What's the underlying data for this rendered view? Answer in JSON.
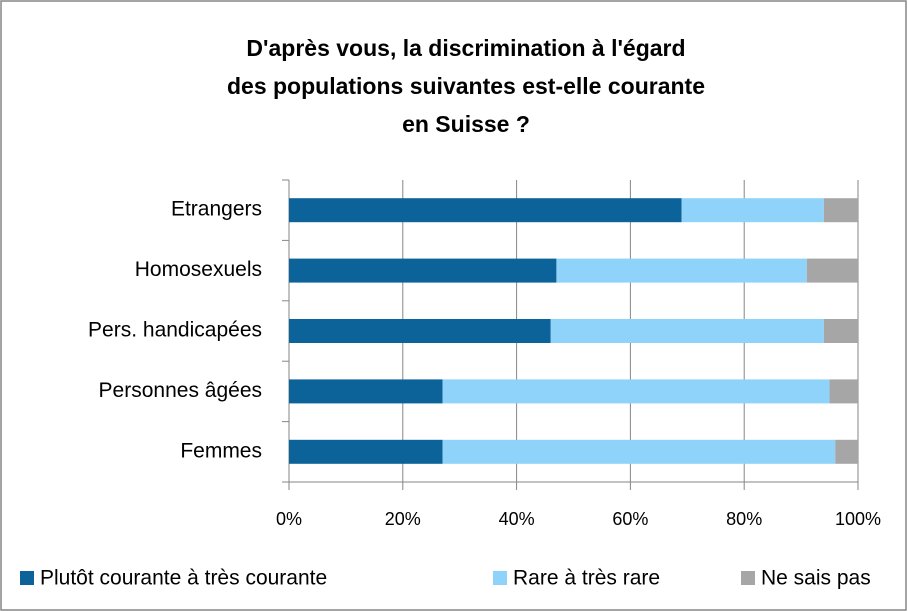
{
  "chart_data": {
    "type": "stacked_bar_horizontal",
    "title": [
      "D'après vous, la discrimination à l'égard",
      "des populations suivantes est-elle courante",
      "en Suisse ?"
    ],
    "categories": [
      "Etrangers",
      "Homosexuels",
      "Pers. handicapées",
      "Personnes âgées",
      "Femmes"
    ],
    "series": [
      {
        "name": "Plutôt courante à très courante",
        "color": "#0b6399",
        "values": [
          69,
          47,
          46,
          27,
          27
        ]
      },
      {
        "name": "Rare à très rare",
        "color": "#8fd3fb",
        "values": [
          25,
          44,
          48,
          68,
          69
        ]
      },
      {
        "name": "Ne sais pas",
        "color": "#a6a6a6",
        "values": [
          6,
          9,
          6,
          5,
          4
        ]
      }
    ],
    "xlim": [
      0,
      100
    ],
    "xticks": [
      {
        "value": 0,
        "label": "0%"
      },
      {
        "value": 20,
        "label": "20%"
      },
      {
        "value": 40,
        "label": "40%"
      },
      {
        "value": 60,
        "label": "60%"
      },
      {
        "value": 80,
        "label": "80%"
      },
      {
        "value": 100,
        "label": "100%"
      }
    ],
    "grid": true,
    "legend": "bottom"
  }
}
